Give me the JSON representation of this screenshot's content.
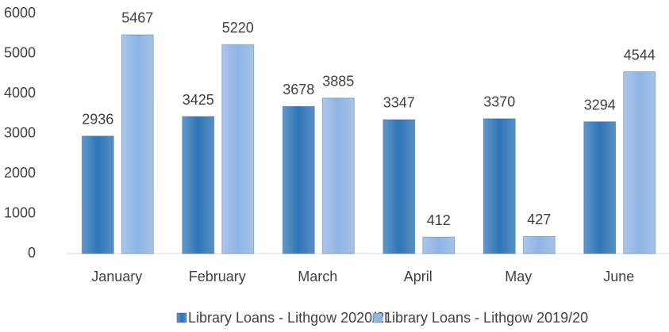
{
  "chart_data": {
    "type": "bar",
    "categories": [
      "January",
      "February",
      "March",
      "April",
      "May",
      "June"
    ],
    "series": [
      {
        "name": "Library Loans - Lithgow 2020/21",
        "color": "#2e75b6",
        "values": [
          2936,
          3425,
          3678,
          3347,
          3370,
          3294
        ]
      },
      {
        "name": "Library Loans - Lithgow 2019/20",
        "color": "#8fb4e3",
        "values": [
          5467,
          5220,
          3885,
          412,
          427,
          4544
        ]
      }
    ],
    "ylim": [
      0,
      6000
    ],
    "yticks": [
      0,
      1000,
      2000,
      3000,
      4000,
      5000,
      6000
    ],
    "grid": false,
    "legend": "bottom"
  }
}
